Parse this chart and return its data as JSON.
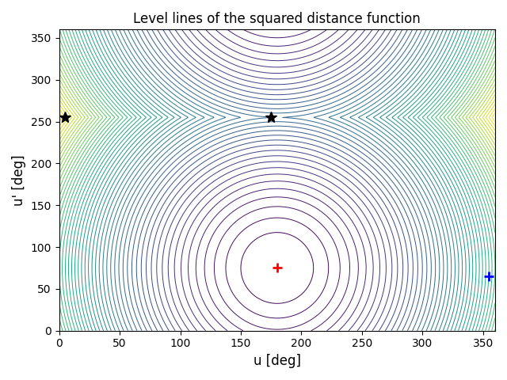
{
  "title": "Level lines of the squared distance function",
  "xlabel": "u [deg]",
  "ylabel": "u' [deg]",
  "xlim": [
    0,
    360
  ],
  "ylim": [
    0,
    360
  ],
  "xticks": [
    0,
    50,
    100,
    150,
    200,
    250,
    300,
    350
  ],
  "yticks": [
    0,
    50,
    100,
    150,
    200,
    250,
    300,
    350
  ],
  "minimum_point": [
    180,
    75
  ],
  "blue_plus_point": [
    355,
    65
  ],
  "star_points": [
    [
      5,
      255
    ],
    [
      175,
      255
    ]
  ],
  "weight_u": 2.0,
  "weight_up": 1.0,
  "n_levels": 55,
  "cmap": "viridis",
  "figsize": [
    6.4,
    4.8
  ],
  "dpi": 100
}
